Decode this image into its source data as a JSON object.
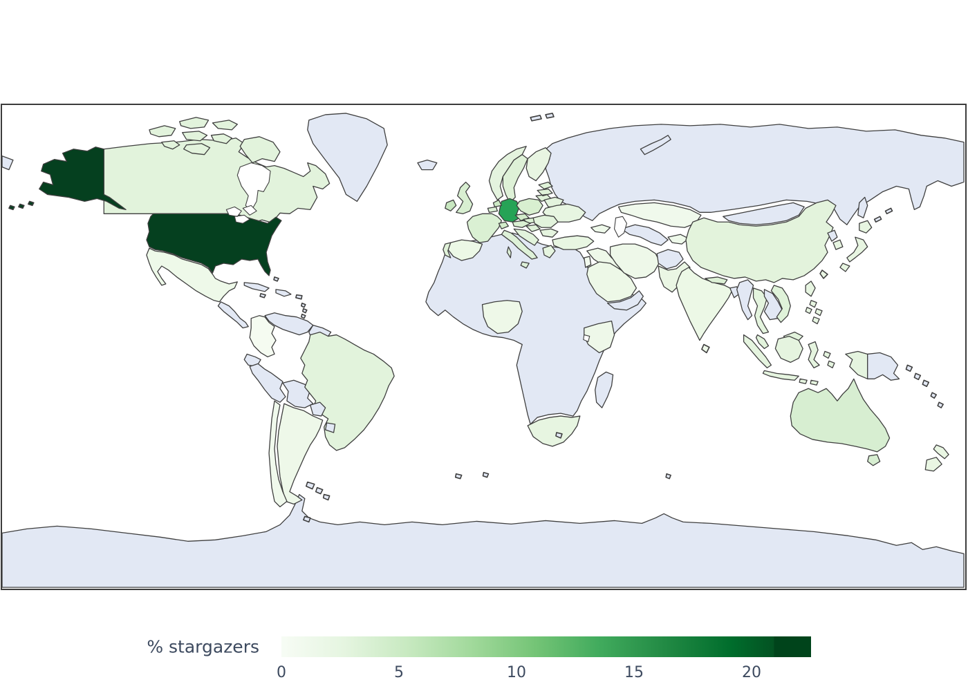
{
  "legend": {
    "label": "% stargazers",
    "ticks": [
      {
        "label": "0",
        "pos": 0
      },
      {
        "label": "5",
        "pos": 22.19
      },
      {
        "label": "10",
        "pos": 44.39
      },
      {
        "label": "15",
        "pos": 66.58
      },
      {
        "label": "20",
        "pos": 88.77
      }
    ],
    "gradient_stops": [
      "#f7fcf5 0%",
      "#e5f5e0 12%",
      "#c7e9c0 24%",
      "#a1d99b 36%",
      "#74c476 48%",
      "#41ab5d 60%",
      "#238b45 72%",
      "#006d2c 85%",
      "#035222 93%",
      "#00441b 93%",
      "#00441b 100%"
    ]
  },
  "chart_data": {
    "type": "heatmap",
    "subtype": "choropleth-world-map",
    "title": "",
    "legend_label": "% stargazers",
    "colormap": "Greens",
    "colorbar_range": [
      0,
      22.4
    ],
    "colorbar_ticks": [
      0,
      5,
      10,
      15,
      20
    ],
    "no_data_color": "#e2e8f4",
    "values_estimated_from_color": true,
    "series": [
      {
        "country": "United States",
        "pct": 22.4
      },
      {
        "country": "Germany",
        "pct": 14.8
      },
      {
        "country": "Ireland",
        "pct": 6.0
      },
      {
        "country": "Netherlands",
        "pct": 5.5
      },
      {
        "country": "Czechia",
        "pct": 5.5
      },
      {
        "country": "Switzerland",
        "pct": 5.3
      },
      {
        "country": "Poland",
        "pct": 5.0
      },
      {
        "country": "Sweden",
        "pct": 4.8
      },
      {
        "country": "United Kingdom",
        "pct": 4.6
      },
      {
        "country": "Denmark",
        "pct": 4.6
      },
      {
        "country": "France",
        "pct": 4.4
      },
      {
        "country": "Australia",
        "pct": 4.4
      },
      {
        "country": "Austria",
        "pct": 4.4
      },
      {
        "country": "Italy",
        "pct": 4.2
      },
      {
        "country": "Vietnam",
        "pct": 3.8
      },
      {
        "country": "Brazil",
        "pct": 3.6
      },
      {
        "country": "Norway",
        "pct": 3.6
      },
      {
        "country": "Malaysia",
        "pct": 3.6
      },
      {
        "country": "China",
        "pct": 3.4
      },
      {
        "country": "Canada",
        "pct": 3.4
      },
      {
        "country": "Thailand",
        "pct": 3.4
      },
      {
        "country": "Finland",
        "pct": 3.2
      },
      {
        "country": "Indonesia",
        "pct": 3.2
      },
      {
        "country": "Greece",
        "pct": 3.2
      },
      {
        "country": "Ukraine",
        "pct": 3.0
      },
      {
        "country": "Japan",
        "pct": 3.0
      },
      {
        "country": "South Korea",
        "pct": 3.0
      },
      {
        "country": "South Africa",
        "pct": 3.0
      },
      {
        "country": "Philippines",
        "pct": 3.0
      },
      {
        "country": "Turkey",
        "pct": 2.8
      },
      {
        "country": "Pakistan",
        "pct": 2.6
      },
      {
        "country": "Spain",
        "pct": 2.4
      },
      {
        "country": "India",
        "pct": 2.4
      },
      {
        "country": "New Zealand",
        "pct": 2.4
      },
      {
        "country": "Saudi Arabia",
        "pct": 2.2
      },
      {
        "country": "Argentina",
        "pct": 1.8
      },
      {
        "country": "Iran",
        "pct": 1.8
      },
      {
        "country": "Chile",
        "pct": 1.6
      },
      {
        "country": "Mexico",
        "pct": 1.6
      },
      {
        "country": "Nigeria",
        "pct": 1.6
      },
      {
        "country": "Kenya",
        "pct": 1.6
      },
      {
        "country": "Kazakhstan",
        "pct": 1.4
      },
      {
        "country": "Colombia",
        "pct": 1.0
      }
    ]
  },
  "colors": {
    "no_data": "#e2e8f4",
    "lake": "#ffffff",
    "usa": "#05401f",
    "germany": "#26a356",
    "canada": "#e2f3dc",
    "uk": "#d8efd1",
    "ireland": "#c8e7c0",
    "france": "#daf0d3",
    "netherlands": "#cde9c5",
    "belgium": "#dcf0d5",
    "spain": "#ecf8e6",
    "portugal": "#e0f2d9",
    "norway": "#e4f3de",
    "sweden": "#def1d7",
    "finland": "#e8f5e2",
    "denmark": "#d8efd1",
    "poland": "#d8efd0",
    "baltics": "#dff2d8",
    "belarus": "#e3f3dd",
    "ukraine": "#e7f5e1",
    "czechia": "#d2ecca",
    "austria": "#daf0d3",
    "switzerland": "#d2ecca",
    "hungary": "#def1d8",
    "romania": "#e2f3dc",
    "bulgaria": "#e5f4df",
    "balkans": "#e2f3dc",
    "greece": "#e6f5e0",
    "italy": "#def1d8",
    "turkey": "#e8f6e2",
    "caucasus": "#eef9ea",
    "syria_iraq": "#eef8e9",
    "israel_jordan": "#f2faee",
    "saudi": "#edf8e7",
    "iran": "#eef8e9",
    "pakistan": "#eaf6e4",
    "central_asia": "#eef9ea",
    "kazakhstan": "#f0f9ec",
    "india": "#ecf8e6",
    "nepal": "#dcf0d5",
    "sri_lanka": "#eef8e9",
    "china": "#e3f3dc",
    "south_korea": "#e7f5e1",
    "japan": "#e7f5e1",
    "taiwan": "#eaf7e4",
    "philippines": "#e7f5e1",
    "vietnam": "#dff2d9",
    "thailand": "#e4f4de",
    "malaysia": "#e2f3dc",
    "indonesia": "#e5f4df",
    "australia": "#d7eed1",
    "new_zealand": "#e9f6e3",
    "brazil": "#e2f3dc",
    "argentina": "#eef8e9",
    "chile": "#f0f9ec",
    "colombia": "#f5fbf1",
    "mexico": "#eef9e9",
    "nigeria": "#eef8e8",
    "kenya": "#eef8e9",
    "south_africa": "#e7f5e1"
  }
}
